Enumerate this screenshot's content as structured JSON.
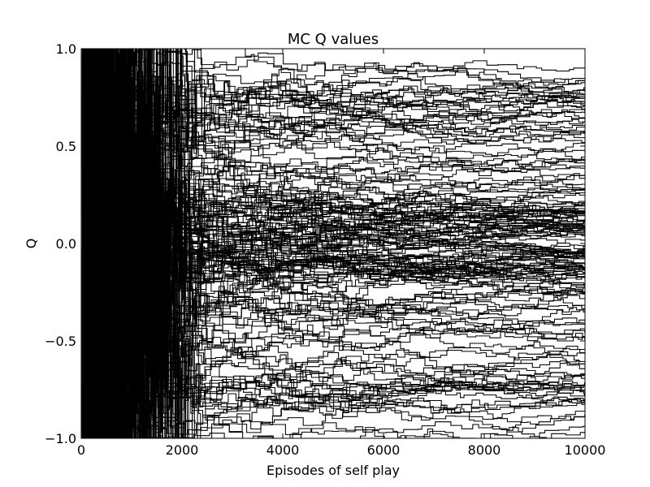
{
  "chart_data": {
    "type": "line",
    "title": "MC Q values",
    "xlabel": "Episodes of self play",
    "ylabel": "Q",
    "xlim": [
      0,
      10000
    ],
    "ylim": [
      -1.0,
      1.0
    ],
    "grid": false,
    "legend": "none",
    "line_color": "#000000",
    "xticks": [
      0,
      2000,
      4000,
      6000,
      8000,
      10000
    ],
    "xtick_labels": [
      "0",
      "2000",
      "4000",
      "6000",
      "8000",
      "10000"
    ],
    "yticks": [
      -1.0,
      -0.5,
      0.0,
      0.5,
      1.0
    ],
    "ytick_labels": [
      "−1.0",
      "−0.5",
      "0.0",
      "0.5",
      "1.0"
    ],
    "series_count": 180,
    "final_values": [
      0.88,
      0.86,
      0.84,
      0.83,
      0.82,
      0.81,
      0.8,
      0.79,
      0.78,
      0.77,
      0.76,
      0.75,
      0.74,
      0.72,
      0.71,
      0.7,
      0.69,
      0.68,
      0.67,
      0.66,
      0.64,
      0.63,
      0.62,
      0.6,
      0.58,
      0.56,
      0.54,
      0.52,
      0.5,
      0.48,
      0.46,
      0.44,
      0.42,
      0.4,
      0.38,
      0.36,
      0.34,
      0.32,
      0.3,
      0.28,
      0.26,
      0.25,
      0.24,
      0.23,
      0.22,
      0.21,
      0.2,
      0.19,
      0.18,
      0.17,
      0.16,
      0.15,
      0.14,
      0.13,
      0.12,
      0.11,
      0.1,
      0.09,
      0.08,
      0.07,
      0.06,
      0.05,
      0.04,
      0.03,
      0.02,
      0.01,
      0.0,
      -0.01,
      -0.02,
      -0.03,
      -0.04,
      -0.05,
      -0.06,
      -0.07,
      -0.08,
      -0.09,
      -0.1,
      -0.11,
      -0.12,
      -0.13,
      -0.14,
      -0.15,
      -0.16,
      -0.17,
      -0.18,
      -0.19,
      -0.2,
      -0.21,
      -0.22,
      -0.23,
      -0.24,
      -0.25,
      -0.27,
      -0.29,
      -0.31,
      -0.33,
      -0.35,
      -0.37,
      -0.4,
      -0.43,
      -0.46,
      -0.49,
      -0.52,
      -0.55,
      -0.58,
      -0.6,
      -0.62,
      -0.64,
      -0.66,
      -0.68,
      -0.7,
      -0.71,
      -0.72,
      -0.73,
      -0.74,
      -0.75,
      -0.76,
      -0.77,
      -0.78,
      -0.79,
      -0.8,
      -0.81,
      -0.82,
      -0.84,
      -0.86,
      -0.88,
      -0.9,
      -0.92,
      -0.95,
      -0.98,
      0.15,
      0.12,
      0.1,
      0.08,
      0.05,
      0.03,
      -0.02,
      -0.04,
      -0.06,
      -0.09,
      -0.11,
      -0.13,
      -0.16,
      -0.19,
      -0.22,
      0.2,
      0.17,
      0.14,
      0.11,
      0.06,
      0.02,
      -0.01,
      -0.05,
      -0.08,
      -0.12,
      -0.15,
      -0.18,
      0.18,
      0.09,
      -0.03,
      0.65,
      0.45,
      0.35,
      -0.36,
      -0.44,
      -0.65,
      0.73,
      -0.69,
      0.57,
      -0.53,
      0.27,
      -0.26,
      0.41,
      -0.39,
      0.07,
      -0.07,
      0.0,
      0.13,
      -0.14,
      0.22
    ],
    "starting_values": [
      1.0,
      -1.0
    ]
  }
}
